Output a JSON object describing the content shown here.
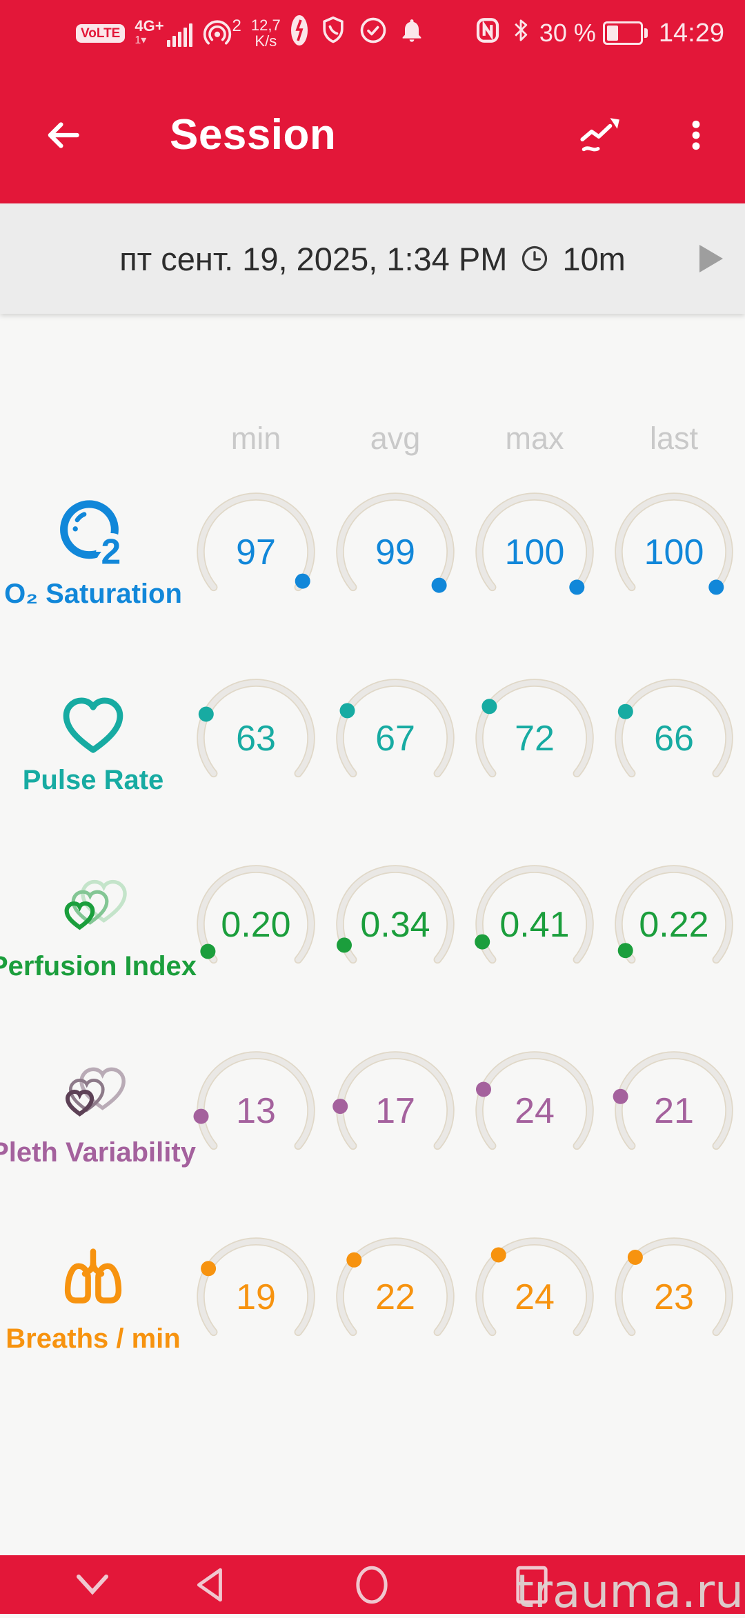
{
  "status_bar": {
    "volte_badge": "VoLTE",
    "network": "4G+",
    "sim_indicator": "1",
    "hotspot_count": "2",
    "net_speed_value": "12,7",
    "net_speed_unit": "K/s",
    "battery_percent": "30 %",
    "time": "14:29"
  },
  "header": {
    "title": "Session",
    "icons": [
      "back-arrow-icon",
      "trends-chart-icon",
      "overflow-menu-icon"
    ]
  },
  "session_bar": {
    "date": "пт сент. 19, 2025, 1:34 PM",
    "duration": "10m",
    "icons": [
      "clock-icon",
      "play-icon"
    ]
  },
  "colors": {
    "app_red": "#e31739",
    "status_text": "#fbe6ea",
    "session_bg": "#ececec",
    "main_bg": "#f7f7f6",
    "column_header": "#c9c9c9",
    "gauge_arc": "#eae8e5",
    "gauge_arc_edge": "#e0d8c8",
    "o2_blue": "#1187d9",
    "pulse_teal": "#17aba2",
    "perfusion_green": "#1b9e3c",
    "pleth_purple": "#a4619d",
    "breaths_orange": "#f7930f",
    "play_gray": "#9e9e9e"
  },
  "chart_data": {
    "type": "table",
    "columns": [
      "min",
      "avg",
      "max",
      "last"
    ],
    "rows": [
      {
        "label": "O₂ Saturation",
        "icon": "o2-bubble",
        "color": "#1187d9",
        "range": [
          0,
          100
        ],
        "values": [
          "97",
          "99",
          "100",
          "100"
        ]
      },
      {
        "label": "Pulse Rate",
        "icon": "heart",
        "color": "#17aba2",
        "range": [
          0,
          250
        ],
        "values": [
          "63",
          "67",
          "72",
          "66"
        ]
      },
      {
        "label": "Perfusion Index",
        "icon": "nested-hearts",
        "color": "#1b9e3c",
        "range": [
          0,
          5
        ],
        "values": [
          "0.20",
          "0.34",
          "0.41",
          "0.22"
        ]
      },
      {
        "label": "Pleth Variability",
        "icon": "double-hearts",
        "color": "#a4619d",
        "range": [
          0,
          100
        ],
        "values": [
          "13",
          "17",
          "24",
          "21"
        ]
      },
      {
        "label": "Breaths / min",
        "icon": "lungs",
        "color": "#f7930f",
        "range": [
          0,
          70
        ],
        "values": [
          "19",
          "22",
          "24",
          "23"
        ]
      }
    ]
  },
  "nav_bar": {
    "icons": [
      "collapse-chevron-icon",
      "nav-back-icon",
      "nav-home-icon",
      "nav-recents-icon"
    ]
  },
  "watermark": "trauma.ru"
}
